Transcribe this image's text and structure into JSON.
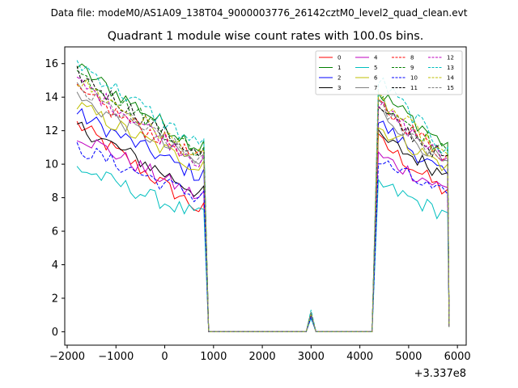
{
  "chart_data": {
    "type": "line",
    "suptitle": "Data file: modeM0/AS1A09_138T04_9000003776_26142cztM0_level2_quad_clean.evt",
    "title": "Quadrant 1 module wise count rates with 100.0s bins.",
    "xlabel": "",
    "ylabel": "",
    "x_offset_label": "+3.337e8",
    "xlim": [
      -2050,
      6180
    ],
    "ylim": [
      -0.8,
      17.0
    ],
    "xticks": [
      -2000,
      -1000,
      0,
      1000,
      2000,
      3000,
      4000,
      5000,
      6000
    ],
    "xtick_labels": [
      "−2000",
      "−1000",
      "0",
      "1000",
      "2000",
      "3000",
      "4000",
      "5000",
      "6000"
    ],
    "yticks": [
      0,
      2,
      4,
      6,
      8,
      10,
      12,
      14,
      16
    ],
    "ytick_labels": [
      "0",
      "2",
      "4",
      "6",
      "8",
      "10",
      "12",
      "14",
      "16"
    ],
    "legend_position": "top-right",
    "segments": {
      "seg1_x": [
        -1800,
        700,
        850
      ],
      "gap1_x": [
        900,
        1000,
        2900
      ],
      "spike_x": 3000,
      "gap2_x": [
        3100,
        4250
      ],
      "seg2_x": [
        4380,
        5700
      ],
      "end_x": [
        5800,
        5830
      ]
    },
    "series": [
      {
        "name": "0",
        "color": "#ff0000",
        "dash": "solid",
        "start": 12.4,
        "end": 7.3,
        "start2": 11.4,
        "end2": 8.5,
        "pre_drop": 7.0,
        "spike": 0.95,
        "end_val": 0.4
      },
      {
        "name": "1",
        "color": "#008000",
        "dash": "solid",
        "start": 15.8,
        "end": 11.0,
        "start2": 14.3,
        "end2": 11.3,
        "pre_drop": 10.5,
        "spike": 1.05,
        "end_val": 0.4
      },
      {
        "name": "2",
        "color": "#0000ff",
        "dash": "solid",
        "start": 13.0,
        "end": 9.3,
        "start2": 12.5,
        "end2": 9.4,
        "pre_drop": 9.0,
        "spike": 1.0,
        "end_val": 0.3
      },
      {
        "name": "3",
        "color": "#000000",
        "dash": "solid",
        "start": 12.3,
        "end": 8.3,
        "start2": 11.6,
        "end2": 9.5,
        "pre_drop": 8.0,
        "spike": 0.95,
        "end_val": 0.3
      },
      {
        "name": "4",
        "color": "#bf00bf",
        "dash": "solid",
        "start": 11.8,
        "end": 8.0,
        "start2": 10.5,
        "end2": 8.6,
        "pre_drop": 8.0,
        "spike": 0.9,
        "end_val": 0.3
      },
      {
        "name": "5",
        "color": "#00bfbf",
        "dash": "solid",
        "start": 9.8,
        "end": 6.9,
        "start2": 8.8,
        "end2": 7.1,
        "pre_drop": 6.6,
        "spike": 0.8,
        "end_val": 0.3
      },
      {
        "name": "6",
        "color": "#bfbf00",
        "dash": "solid",
        "start": 13.5,
        "end": 9.8,
        "start2": 12.2,
        "end2": 10.0,
        "pre_drop": 9.4,
        "spike": 1.0,
        "end_val": 0.3
      },
      {
        "name": "7",
        "color": "#808080",
        "dash": "solid",
        "start": 14.0,
        "end": 10.0,
        "start2": 13.2,
        "end2": 10.2,
        "pre_drop": 9.5,
        "spike": 1.05,
        "end_val": 0.3
      },
      {
        "name": "8",
        "color": "#ff0000",
        "dash": "dashed",
        "start": 14.3,
        "end": 10.3,
        "start2": 13.6,
        "end2": 10.6,
        "pre_drop": 10.0,
        "spike": 1.1,
        "end_val": 0.3
      },
      {
        "name": "9",
        "color": "#008000",
        "dash": "dashed",
        "start": 15.5,
        "end": 10.6,
        "start2": 14.0,
        "end2": 10.8,
        "pre_drop": 10.3,
        "spike": 1.2,
        "end_val": 0.3
      },
      {
        "name": "10",
        "color": "#0000ff",
        "dash": "dashed",
        "start": 11.0,
        "end": 8.0,
        "start2": 10.2,
        "end2": 8.2,
        "pre_drop": 7.8,
        "spike": 0.9,
        "end_val": 0.3
      },
      {
        "name": "11",
        "color": "#000000",
        "dash": "dashed",
        "start": 15.4,
        "end": 10.5,
        "start2": 13.2,
        "end2": 10.5,
        "pre_drop": 10.2,
        "spike": 1.1,
        "end_val": 0.3
      },
      {
        "name": "12",
        "color": "#bf00bf",
        "dash": "dashed",
        "start": 14.9,
        "end": 10.2,
        "start2": 13.5,
        "end2": 10.4,
        "pre_drop": 9.9,
        "spike": 1.1,
        "end_val": 0.3
      },
      {
        "name": "13",
        "color": "#00bfbf",
        "dash": "dashed",
        "start": 16.1,
        "end": 11.1,
        "start2": 15.1,
        "end2": 11.0,
        "pre_drop": 10.7,
        "spike": 1.3,
        "end_val": 0.3
      },
      {
        "name": "14",
        "color": "#bfbf00",
        "dash": "dashed",
        "start": 15.0,
        "end": 10.4,
        "start2": 13.9,
        "end2": 10.6,
        "pre_drop": 10.1,
        "spike": 1.1,
        "end_val": 0.3
      },
      {
        "name": "15",
        "color": "#808080",
        "dash": "dashed",
        "start": 14.5,
        "end": 10.2,
        "start2": 13.4,
        "end2": 10.3,
        "pre_drop": 9.8,
        "spike": 1.1,
        "end_val": 0.3
      }
    ]
  }
}
